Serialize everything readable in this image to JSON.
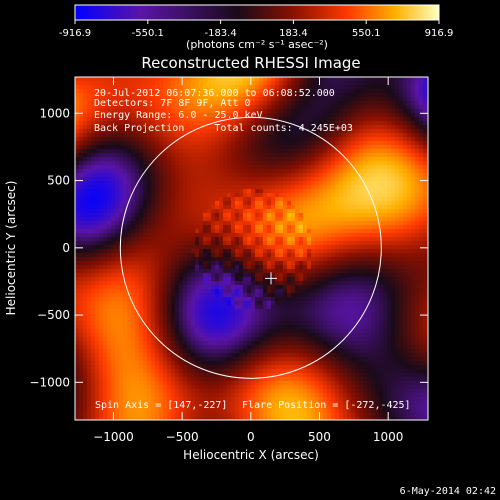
{
  "colorbar": {
    "ticks": [
      "-916.9",
      "-550.1",
      "-183.4",
      "183.4",
      "550.1",
      "916.9"
    ],
    "units": "(photons cm⁻² s⁻¹ asec⁻²)"
  },
  "header_lines": [
    "20-Jul-2012 06:07:36.000 to 06:08:52.000",
    "Detectors: 7F 8F 9F, Att 0",
    "Energy Range: 6.0 - 25.0 keV",
    "Back Projection     Total counts: 4.245E+03"
  ],
  "footer": {
    "spin_axis": "Spin Axis = [147,-227]",
    "flare_position": "Flare Position = [-272,-425]"
  },
  "print_date": "6-May-2014 02:42",
  "chart_data": {
    "type": "heatmap",
    "title": "Reconstructed RHESSI Image",
    "xlabel": "Heliocentric X (arcsec)",
    "ylabel": "Heliocentric Y (arcsec)",
    "xlim": [
      -1280,
      1290
    ],
    "ylim": [
      -1280,
      1270
    ],
    "xticks": [
      -1000,
      -500,
      0,
      500,
      1000
    ],
    "yticks": [
      -1000,
      -500,
      0,
      500,
      1000
    ],
    "xtick_labels": [
      "−1000",
      "−500",
      "0",
      "500",
      "1000"
    ],
    "ytick_labels": [
      "−1000",
      "−500",
      "0",
      "500",
      "1000"
    ],
    "value_range": [
      -916.9,
      916.9
    ],
    "colormap": [
      "#0000ff",
      "#5a14a8",
      "#1a0a18",
      "#8a1000",
      "#ff3a00",
      "#ffb000",
      "#ffffb0"
    ],
    "solar_limb": {
      "center": [
        0,
        0
      ],
      "radius": 950
    },
    "crosshair": {
      "center": [
        147,
        -227
      ]
    },
    "grid": false
  }
}
